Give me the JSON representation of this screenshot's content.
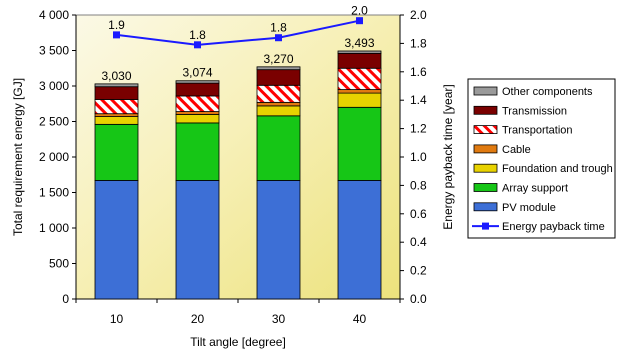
{
  "chart_data": {
    "type": "bar",
    "title": "",
    "xlabel": "Tilt angle [degree]",
    "ylabel_left": "Total requirement energy [GJ]",
    "ylabel_right": "Energy payback time [year]",
    "categories": [
      "10",
      "20",
      "30",
      "40"
    ],
    "ylim_left": [
      0,
      4000
    ],
    "yticks_left": [
      "0",
      "500",
      "1 000",
      "1 500",
      "2 000",
      "2 500",
      "3 000",
      "3 500",
      "4 000"
    ],
    "ylim_right": [
      0,
      2.0
    ],
    "yticks_right": [
      "0.0",
      "0.2",
      "0.4",
      "0.6",
      "0.8",
      "1.0",
      "1.2",
      "1.4",
      "1.6",
      "1.8",
      "2.0"
    ],
    "grid": false,
    "legend_position": "right",
    "stacked_series": [
      {
        "name": "PV module",
        "values": [
          1670,
          1670,
          1670,
          1670
        ],
        "color": "#3d6fd6"
      },
      {
        "name": "Array support",
        "values": [
          790,
          810,
          910,
          1030
        ],
        "color": "#16c616"
      },
      {
        "name": "Foundation and trough",
        "values": [
          110,
          120,
          140,
          200
        ],
        "color": "#e8d200"
      },
      {
        "name": "Cable",
        "values": [
          40,
          40,
          50,
          50
        ],
        "color": "#e07a10"
      },
      {
        "name": "Transportation",
        "values": [
          200,
          220,
          240,
          300
        ],
        "color": "#ff0000"
      },
      {
        "name": "Transmission",
        "values": [
          180,
          180,
          220,
          210
        ],
        "color": "#7a0000"
      },
      {
        "name": "Other components",
        "values": [
          40,
          34,
          40,
          33
        ],
        "color": "#9a9a9a"
      }
    ],
    "totals": [
      3030,
      3074,
      3270,
      3493
    ],
    "total_labels": [
      "3,030",
      "3,074",
      "3,270",
      "3,493"
    ],
    "line_series": {
      "name": "Energy payback time",
      "values": [
        1.86,
        1.79,
        1.84,
        1.96
      ],
      "labels": [
        "1.9",
        "1.8",
        "1.8",
        "2.0"
      ],
      "color": "#1a1aff"
    },
    "legend_order": [
      "Other components",
      "Transmission",
      "Transportation",
      "Cable",
      "Foundation and trough",
      "Array support",
      "PV module",
      "Energy payback time"
    ]
  }
}
